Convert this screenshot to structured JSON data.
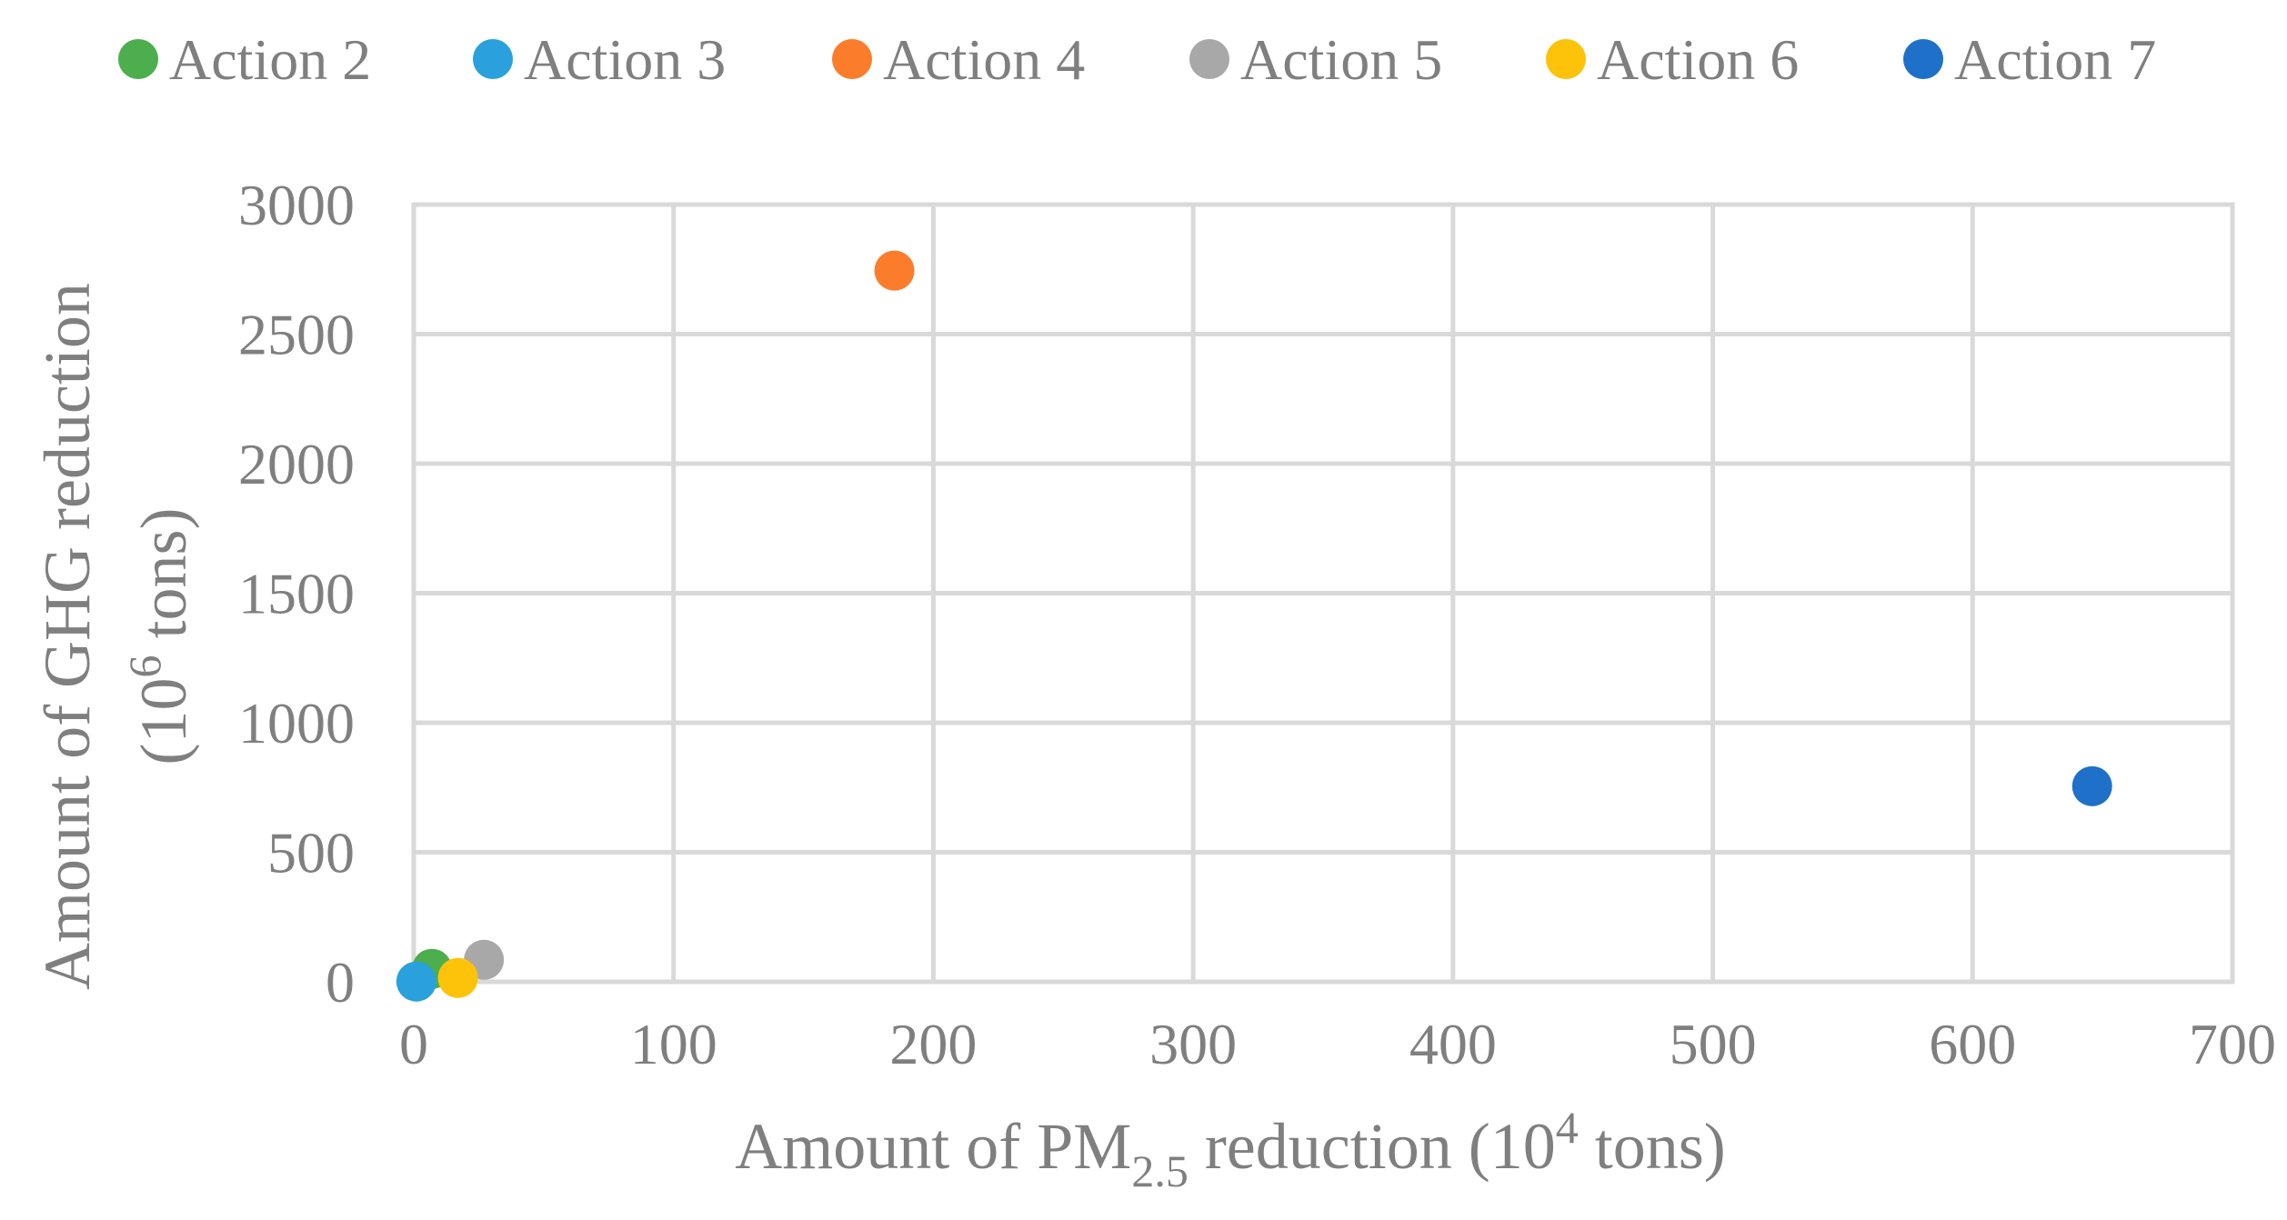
{
  "chart_data": {
    "type": "scatter",
    "xlabel": {
      "pre": "Amount of PM",
      "sub": "2.5",
      "mid": " reduction (10",
      "sup": "4",
      "post": " tons)"
    },
    "ylabel": {
      "line1": "Amount of GHG reduction",
      "line2_pre": "(10",
      "line2_sup": "6",
      "line2_post": " tons)"
    },
    "xlim": [
      0,
      700
    ],
    "ylim": [
      0,
      3000
    ],
    "x_ticks": [
      "0",
      "100",
      "200",
      "300",
      "400",
      "500",
      "600",
      "700"
    ],
    "y_ticks": [
      "0",
      "500",
      "1000",
      "1500",
      "2000",
      "2500",
      "3000"
    ],
    "grid": true,
    "legend_position": "top",
    "series": [
      {
        "name": "Action 2",
        "color": "#4cae4c",
        "points": [
          {
            "x": 7,
            "y": 50
          }
        ]
      },
      {
        "name": "Action 3",
        "color": "#2aa0dc",
        "points": [
          {
            "x": 1,
            "y": 1
          }
        ]
      },
      {
        "name": "Action 4",
        "color": "#fb7d2c",
        "points": [
          {
            "x": 185,
            "y": 2745
          }
        ]
      },
      {
        "name": "Action 5",
        "color": "#a8a8a8",
        "points": [
          {
            "x": 27,
            "y": 85
          }
        ]
      },
      {
        "name": "Action 6",
        "color": "#fdc20a",
        "points": [
          {
            "x": 17,
            "y": 15
          }
        ]
      },
      {
        "name": "Action 7",
        "color": "#1e70c8",
        "points": [
          {
            "x": 646,
            "y": 755
          }
        ]
      }
    ]
  }
}
